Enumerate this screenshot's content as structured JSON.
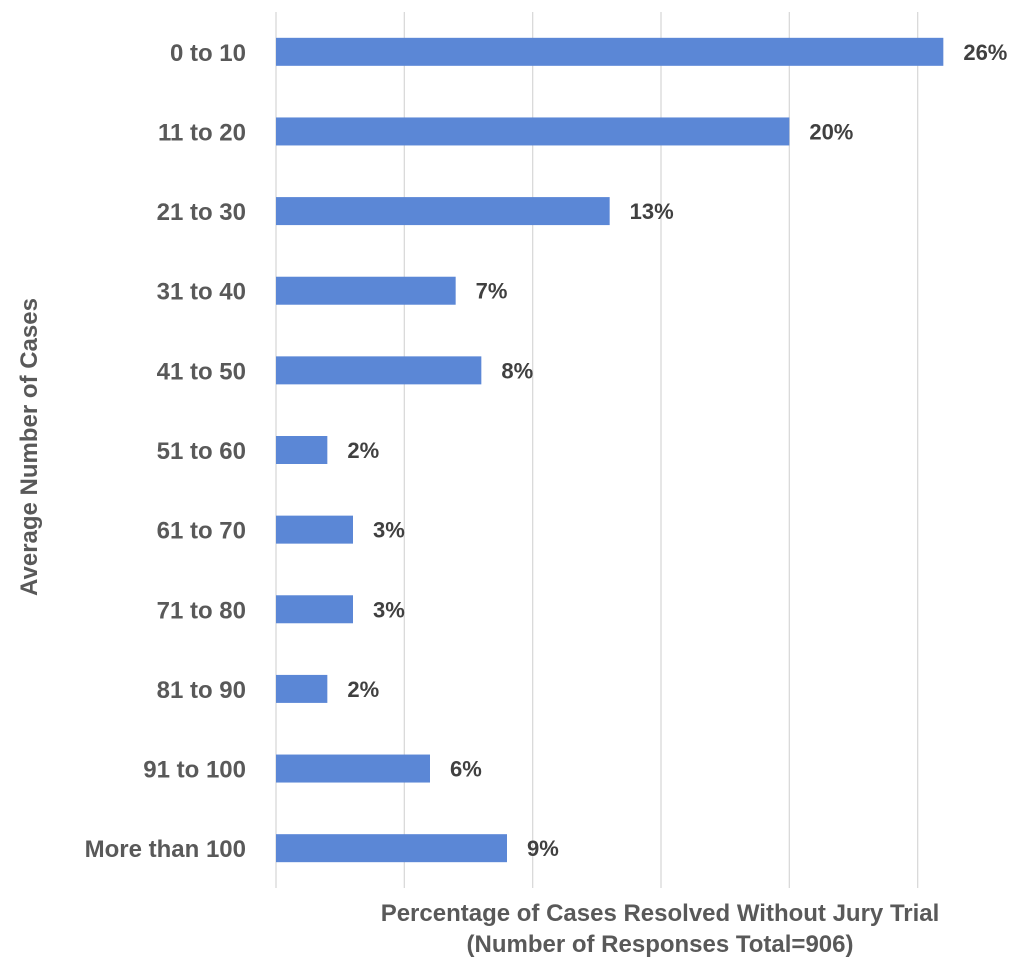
{
  "chart_data": {
    "type": "bar",
    "orientation": "horizontal",
    "title": "",
    "xlabel": [
      "Percentage of Cases Resolved Without Jury Trial",
      "(Number of Responses Total=906)"
    ],
    "ylabel": "Average Number of Cases",
    "categories": [
      "0 to 10",
      "11 to 20",
      "21 to 30",
      "31 to 40",
      "41 to 50",
      "51 to 60",
      "61 to 70",
      "71 to 80",
      "81 to 90",
      "91 to 100",
      "More than 100"
    ],
    "values": [
      26,
      20,
      13,
      7,
      8,
      2,
      3,
      3,
      2,
      6,
      9
    ],
    "data_labels": [
      "26%",
      "20%",
      "13%",
      "7%",
      "8%",
      "2%",
      "3%",
      "3%",
      "2%",
      "6%",
      "9%"
    ],
    "xlim": [
      0,
      30
    ],
    "x_gridline_step": 5,
    "x_tick_labels_shown": false,
    "grid": true,
    "legend": "none",
    "bar_color": "#5b87d6"
  }
}
